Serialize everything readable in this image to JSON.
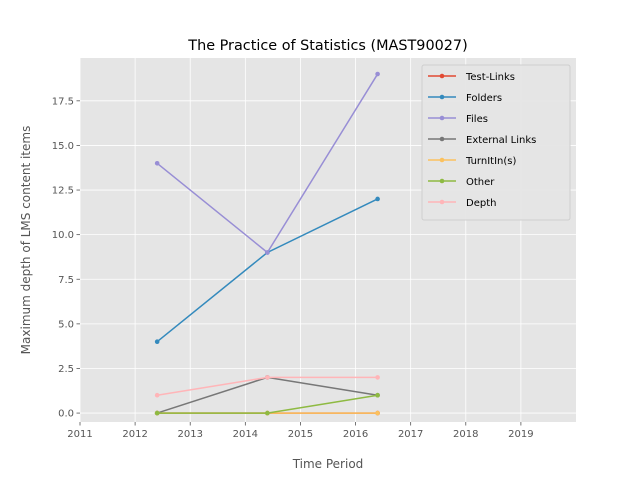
{
  "chart_data": {
    "type": "line",
    "title": "The Practice of Statistics (MAST90027)",
    "xlabel": "Time Period",
    "ylabel": "Maximum depth of LMS content items",
    "xlim": [
      2011.0,
      2020.0
    ],
    "ylim": [
      -0.5,
      19.9
    ],
    "xticks": [
      2011,
      2012,
      2013,
      2014,
      2015,
      2016,
      2017,
      2018,
      2019
    ],
    "xtick_labels": [
      "2011",
      "2012",
      "2013",
      "2014",
      "2015",
      "2016",
      "2017",
      "2018",
      "2019"
    ],
    "yticks": [
      0.0,
      2.5,
      5.0,
      7.5,
      10.0,
      12.5,
      15.0,
      17.5
    ],
    "ytick_labels": [
      "0.0",
      "2.5",
      "5.0",
      "7.5",
      "10.0",
      "12.5",
      "15.0",
      "17.5"
    ],
    "x": [
      2012.4,
      2014.4,
      2016.4
    ],
    "grid": true,
    "legend_position": "upper right",
    "series": [
      {
        "name": "Test-Links",
        "color": "#E24A33",
        "values": [
          0,
          0,
          0
        ]
      },
      {
        "name": "Folders",
        "color": "#348ABD",
        "values": [
          4,
          9,
          12
        ]
      },
      {
        "name": "Files",
        "color": "#988ED5",
        "values": [
          14,
          9,
          19
        ]
      },
      {
        "name": "External Links",
        "color": "#777777",
        "values": [
          0,
          2,
          1
        ]
      },
      {
        "name": "TurnItIn(s)",
        "color": "#FBC15E",
        "values": [
          0,
          0,
          0
        ]
      },
      {
        "name": "Other",
        "color": "#8EBA42",
        "values": [
          0,
          0,
          1
        ]
      },
      {
        "name": "Depth",
        "color": "#FFB5B8",
        "values": [
          1,
          2,
          2
        ]
      }
    ]
  }
}
